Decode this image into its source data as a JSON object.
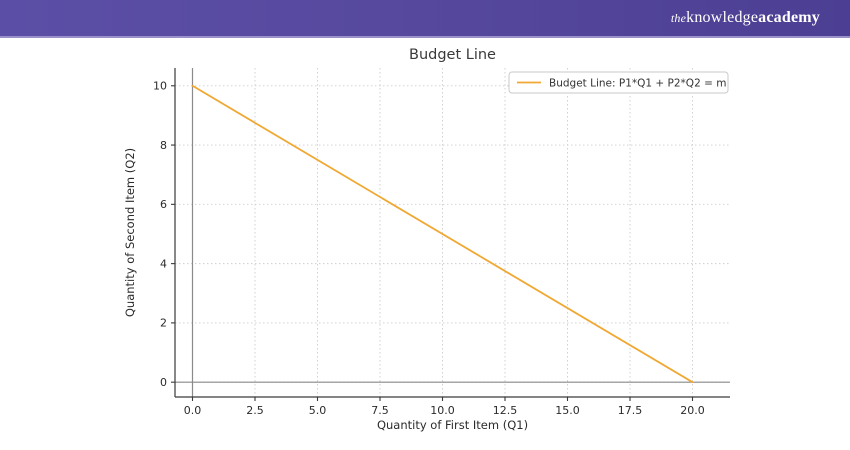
{
  "header": {
    "brand": {
      "prefix": "the",
      "middle": "knowledge",
      "suffix": "academy"
    },
    "background": "#55489c",
    "accent_strip": "#9a91cb"
  },
  "chart_data": {
    "type": "line",
    "title": "Budget Line",
    "xlabel": "Quantity of First Item (Q1)",
    "ylabel": "Quantity of Second Item (Q2)",
    "series": [
      {
        "name": "Budget Line: P1*Q1 + P2*Q2 = m",
        "color": "#f0a832",
        "points": [
          [
            0,
            10
          ],
          [
            20,
            0
          ]
        ]
      }
    ],
    "xlim": [
      -0.7,
      21.5
    ],
    "ylim": [
      -0.5,
      10.6
    ],
    "xtick_values": [
      0,
      2.5,
      5,
      7.5,
      10,
      12.5,
      15,
      17.5,
      20
    ],
    "xtick_labels": [
      "0.0",
      "2.5",
      "5.0",
      "7.5",
      "10.0",
      "12.5",
      "15.0",
      "17.5",
      "20.0"
    ],
    "ytick_values": [
      0,
      2,
      4,
      6,
      8,
      10
    ],
    "ytick_labels": [
      "0",
      "2",
      "4",
      "6",
      "8",
      "10"
    ],
    "grid": true,
    "grid_style": "dotted",
    "grid_color": "#cdcdcd",
    "reference_lines": {
      "vline_x": 0,
      "hline_y": 0,
      "color": "#8a8a8a"
    },
    "legend": {
      "position": "upper right",
      "entries": [
        "Budget Line: P1*Q1 + P2*Q2 = m"
      ]
    },
    "axis_color": "#3a3a3a",
    "tick_label_color": "#2b2b2b",
    "title_color": "#3a3a3a",
    "plot_background": "#ffffff"
  }
}
